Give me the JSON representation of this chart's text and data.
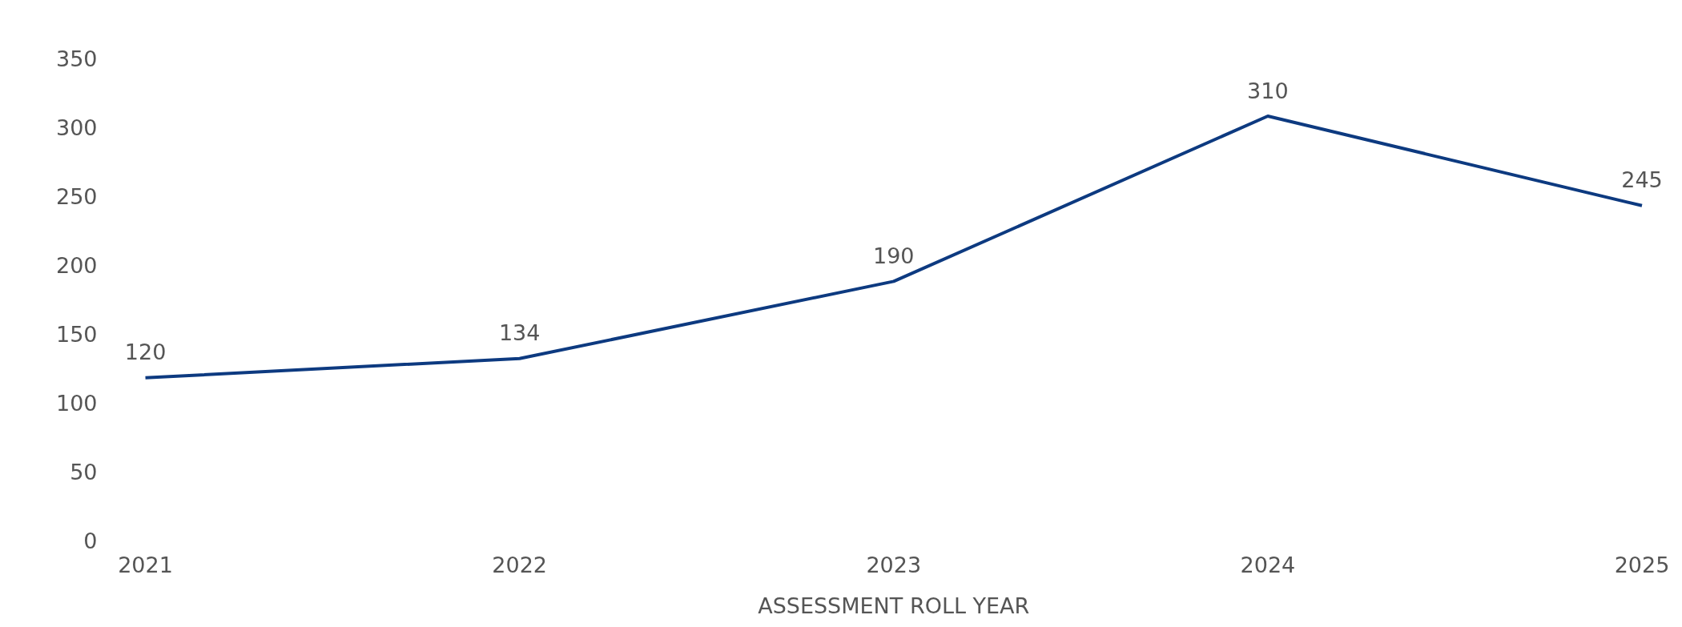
{
  "chart_data": {
    "type": "line",
    "xlabel": "ASSESSMENT ROLL YEAR",
    "categories": [
      "2021",
      "2022",
      "2023",
      "2024",
      "2025"
    ],
    "series": [
      {
        "color": "#0d3a80",
        "values": [
          120,
          134,
          190,
          310,
          245
        ]
      }
    ],
    "ylim": [
      0,
      350
    ],
    "yticks": [
      0,
      50,
      100,
      150,
      200,
      250,
      300,
      350
    ],
    "grid": false,
    "legend": false,
    "marker": "none",
    "line_style": "solid",
    "data_labels": true
  }
}
